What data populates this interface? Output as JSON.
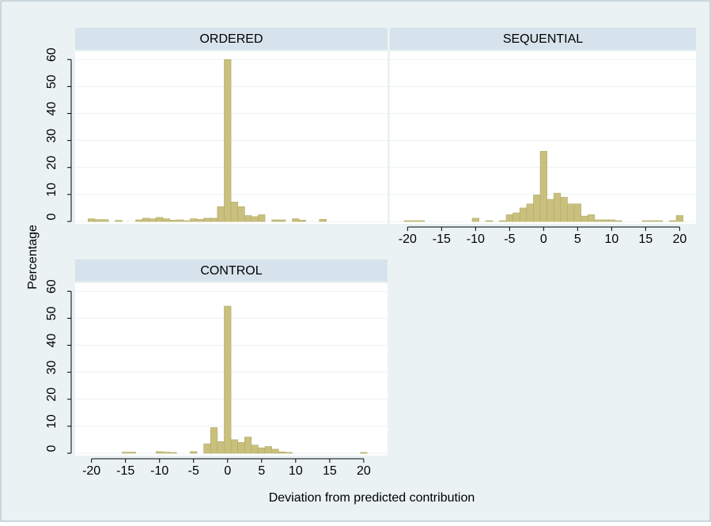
{
  "chart_data": [
    {
      "type": "histogram",
      "title": "ORDERED",
      "color": "#c9c07e",
      "grid": true,
      "bins": [
        -20.5,
        -19.5,
        -18.5,
        -17.5,
        -16.5,
        -15.5,
        -14.5,
        -13.5,
        -12.5,
        -11.5,
        -10.5,
        -9.5,
        -8.5,
        -7.5,
        -6.5,
        -5.5,
        -4.5,
        -3.5,
        -2.5,
        -1.5,
        -0.5,
        0.5,
        1.5,
        2.5,
        3.5,
        4.5,
        5.5,
        6.5,
        7.5,
        8.5,
        9.5,
        10.5,
        11.5,
        12.5,
        13.5,
        14.5,
        15.5,
        16.5,
        17.5,
        18.5,
        19.5,
        20.5
      ],
      "values": [
        1.0,
        0.7,
        0.7,
        0,
        0.4,
        0,
        0,
        0.6,
        1.2,
        1.0,
        1.5,
        1.0,
        0.5,
        0.6,
        0.3,
        1.0,
        0.8,
        1.2,
        1.2,
        5.5,
        60,
        7.2,
        5.5,
        2.2,
        1.8,
        2.5,
        0,
        0.6,
        0.6,
        0,
        1.0,
        0.5,
        0,
        0,
        0.8,
        0,
        0,
        0,
        0,
        0,
        0
      ],
      "xlim": [
        -22.4,
        23.5
      ],
      "ylim": [
        0,
        63
      ],
      "yticks": [
        0,
        10,
        20,
        30,
        40,
        50,
        60
      ],
      "ytick_labels": true
    },
    {
      "type": "histogram",
      "title": "SEQUENTIAL",
      "color": "#c9c07e",
      "grid": true,
      "bins": [
        -20.5,
        -19.5,
        -18.5,
        -17.5,
        -16.5,
        -15.5,
        -14.5,
        -13.5,
        -12.5,
        -11.5,
        -10.5,
        -9.5,
        -8.5,
        -7.5,
        -6.5,
        -5.5,
        -4.5,
        -3.5,
        -2.5,
        -1.5,
        -0.5,
        0.5,
        1.5,
        2.5,
        3.5,
        4.5,
        5.5,
        6.5,
        7.5,
        8.5,
        9.5,
        10.5,
        11.5,
        12.5,
        13.5,
        14.5,
        15.5,
        16.5,
        17.5,
        18.5,
        19.5,
        20.5
      ],
      "values": [
        0.3,
        0.3,
        0.3,
        0,
        0,
        0,
        0,
        0,
        0,
        0,
        1.2,
        0,
        0.3,
        0,
        0.3,
        2.5,
        3.2,
        5,
        6.5,
        9.8,
        26,
        8.2,
        10.5,
        9,
        6.5,
        6.5,
        2,
        2.5,
        0.6,
        0.6,
        0.6,
        0.3,
        0,
        0,
        0,
        0.3,
        0.3,
        0.3,
        0,
        0.3,
        2.2
      ],
      "xlim": [
        -22.6,
        22.4
      ],
      "ylim": [
        0,
        63
      ],
      "xticks": [
        -20,
        -15,
        -10,
        -5,
        0,
        5,
        10,
        15,
        20
      ],
      "yticks": [
        0,
        10,
        20,
        30,
        40,
        50,
        60
      ],
      "ytick_labels": false
    },
    {
      "type": "histogram",
      "title": "CONTROL",
      "color": "#c9c07e",
      "grid": true,
      "bins": [
        -20.5,
        -19.5,
        -18.5,
        -17.5,
        -16.5,
        -15.5,
        -14.5,
        -13.5,
        -12.5,
        -11.5,
        -10.5,
        -9.5,
        -8.5,
        -7.5,
        -6.5,
        -5.5,
        -4.5,
        -3.5,
        -2.5,
        -1.5,
        -0.5,
        0.5,
        1.5,
        2.5,
        3.5,
        4.5,
        5.5,
        6.5,
        7.5,
        8.5,
        9.5,
        10.5,
        11.5,
        12.5,
        13.5,
        14.5,
        15.5,
        16.5,
        17.5,
        18.5,
        19.5,
        20.5
      ],
      "values": [
        0,
        0,
        0,
        0,
        0,
        0.4,
        0.4,
        0,
        0,
        0,
        0.6,
        0.4,
        0.3,
        0,
        0,
        0.6,
        0,
        3.5,
        9.5,
        4.3,
        54.5,
        5,
        4,
        6,
        3,
        2,
        2.5,
        1.5,
        0.5,
        0.3,
        0,
        0,
        0,
        0,
        0,
        0,
        0,
        0,
        0,
        0,
        0.3
      ],
      "xlim": [
        -22.4,
        23.5
      ],
      "ylim": [
        0,
        63
      ],
      "xticks": [
        -20,
        -15,
        -10,
        -5,
        0,
        5,
        10,
        15,
        20
      ],
      "yticks": [
        0,
        10,
        20,
        30,
        40,
        50,
        60
      ],
      "ytick_labels": true
    }
  ],
  "ylabel": "Percentage",
  "xlabel": "Deviation from predicted contribution"
}
